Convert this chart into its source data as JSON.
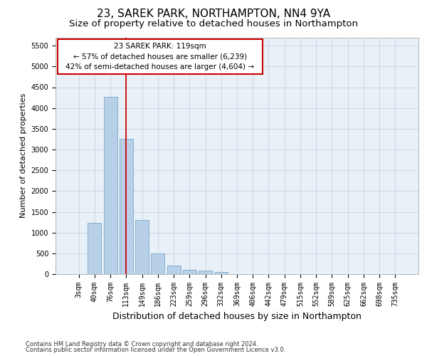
{
  "title": "23, SAREK PARK, NORTHAMPTON, NN4 9YA",
  "subtitle": "Size of property relative to detached houses in Northampton",
  "xlabel": "Distribution of detached houses by size in Northampton",
  "ylabel": "Number of detached properties",
  "footnote1": "Contains HM Land Registry data © Crown copyright and database right 2024.",
  "footnote2": "Contains public sector information licensed under the Open Government Licence v3.0.",
  "categories": [
    "3sqm",
    "40sqm",
    "76sqm",
    "113sqm",
    "149sqm",
    "186sqm",
    "223sqm",
    "259sqm",
    "296sqm",
    "332sqm",
    "369sqm",
    "406sqm",
    "442sqm",
    "479sqm",
    "515sqm",
    "552sqm",
    "589sqm",
    "625sqm",
    "662sqm",
    "698sqm",
    "735sqm"
  ],
  "values": [
    0,
    1230,
    4270,
    3250,
    1300,
    490,
    210,
    100,
    80,
    60,
    0,
    0,
    0,
    0,
    0,
    0,
    0,
    0,
    0,
    0,
    0
  ],
  "bar_color": "#b8cfe8",
  "bar_edgecolor": "#7aaac8",
  "vline_x_idx": 3,
  "vline_color": "#cc0000",
  "annotation_box_text": "23 SAREK PARK: 119sqm\n← 57% of detached houses are smaller (6,239)\n42% of semi-detached houses are larger (4,604) →",
  "ylim": [
    0,
    5700
  ],
  "yticks": [
    0,
    500,
    1000,
    1500,
    2000,
    2500,
    3000,
    3500,
    4000,
    4500,
    5000,
    5500
  ],
  "bg_color": "#ffffff",
  "plot_bg_color": "#e8f0f8",
  "grid_color": "#c8d4e0",
  "title_fontsize": 11,
  "subtitle_fontsize": 9.5,
  "ylabel_fontsize": 8,
  "xlabel_fontsize": 9,
  "tick_fontsize": 7,
  "footnote_fontsize": 6,
  "ann_fontsize": 7.5
}
